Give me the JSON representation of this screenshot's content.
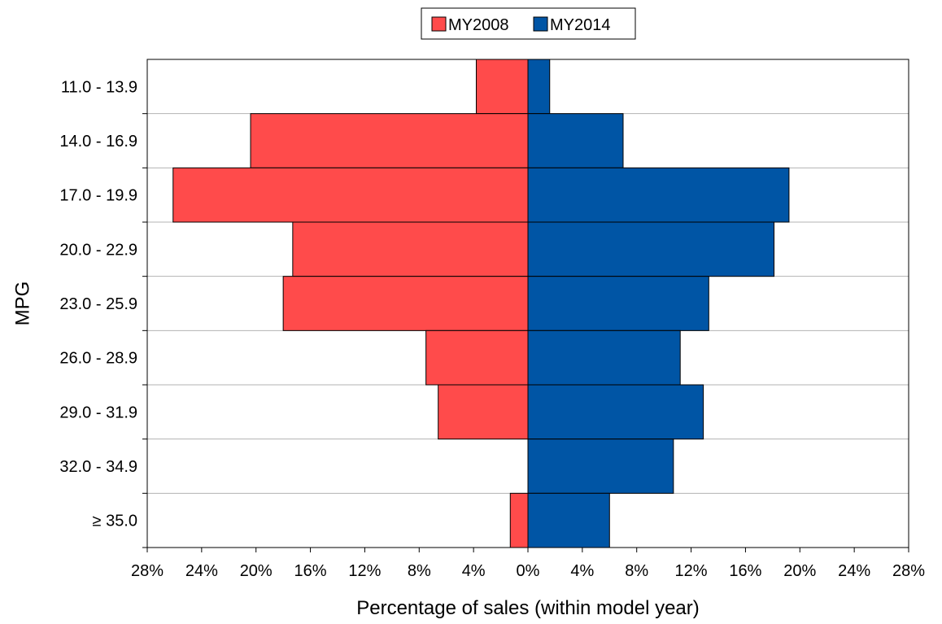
{
  "chart_data": {
    "type": "bar",
    "orientation": "horizontal",
    "layout": "diverging",
    "title": "",
    "xlabel": "Percentage of sales (within model year)",
    "ylabel": "MPG",
    "xlim": [
      -28,
      28
    ],
    "x_ticks": [
      -28,
      -24,
      -20,
      -16,
      -12,
      -8,
      -4,
      0,
      4,
      8,
      12,
      16,
      20,
      24,
      28
    ],
    "x_tick_labels": [
      "28%",
      "24%",
      "20%",
      "16%",
      "12%",
      "8%",
      "4%",
      "0%",
      "4%",
      "8%",
      "12%",
      "16%",
      "20%",
      "24%",
      "28%"
    ],
    "categories": [
      "11.0 - 13.9",
      "14.0 - 16.9",
      "17.0 - 19.9",
      "20.0 - 22.9",
      "23.0 - 25.9",
      "26.0 - 28.9",
      "29.0 - 31.9",
      "32.0 - 34.9",
      "≥ 35.0"
    ],
    "series": [
      {
        "name": "MY2008",
        "color": "#FF4B4B",
        "side": "left",
        "values": [
          3.8,
          20.4,
          26.1,
          17.3,
          18.0,
          7.5,
          6.6,
          0.0,
          1.3
        ]
      },
      {
        "name": "MY2014",
        "color": "#0055A5",
        "side": "right",
        "values": [
          1.6,
          7.0,
          19.2,
          18.1,
          13.3,
          11.2,
          12.9,
          10.7,
          6.0
        ]
      }
    ],
    "legend_position": "top-center",
    "grid": "horizontal-between-categories"
  }
}
